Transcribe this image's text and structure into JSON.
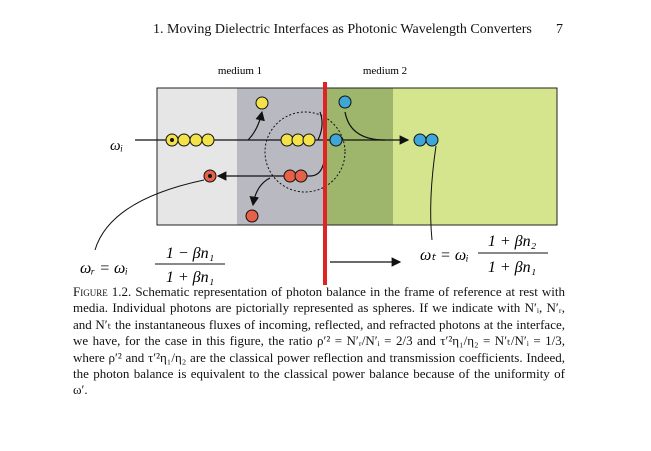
{
  "header": {
    "title": "1. Moving Dielectric Interfaces as Photonic Wavelength Converters",
    "page": "7"
  },
  "figure": {
    "medium1": "medium 1",
    "medium2": "medium 2",
    "incident_label": "ωᵢ",
    "reflected": {
      "lhs": "ωᵣ = ωᵢ",
      "numerator": "1 − βn₁",
      "denominator": "1 + βn₁"
    },
    "transmitted": {
      "lhs": "ωₜ = ωᵢ",
      "numerator": "1 + βn₂",
      "denominator": "1 + βn₁"
    }
  },
  "caption": {
    "label": "Figure 1.2.",
    "text": "Schematic representation of photon balance in the frame of reference at rest with media. Individual photons are pictorially represented as spheres. If we indicate with N′ᵢ, N′ᵣ, and N′ₜ the instantaneous fluxes of incoming, reflected, and refracted photons at the interface, we have, for the case in this figure, the ratio ρ′² = N′ᵣ/N′ᵢ = 2/3 and τ′²η₁/η₂ = N′ₜ/N′ᵢ = 1/3, where ρ′² and τ′²η₁/η₂ are the classical power reflection and transmission coefficients. Indeed, the photon balance is equivalent to the classical power balance because of the uniformity of ω′."
  }
}
